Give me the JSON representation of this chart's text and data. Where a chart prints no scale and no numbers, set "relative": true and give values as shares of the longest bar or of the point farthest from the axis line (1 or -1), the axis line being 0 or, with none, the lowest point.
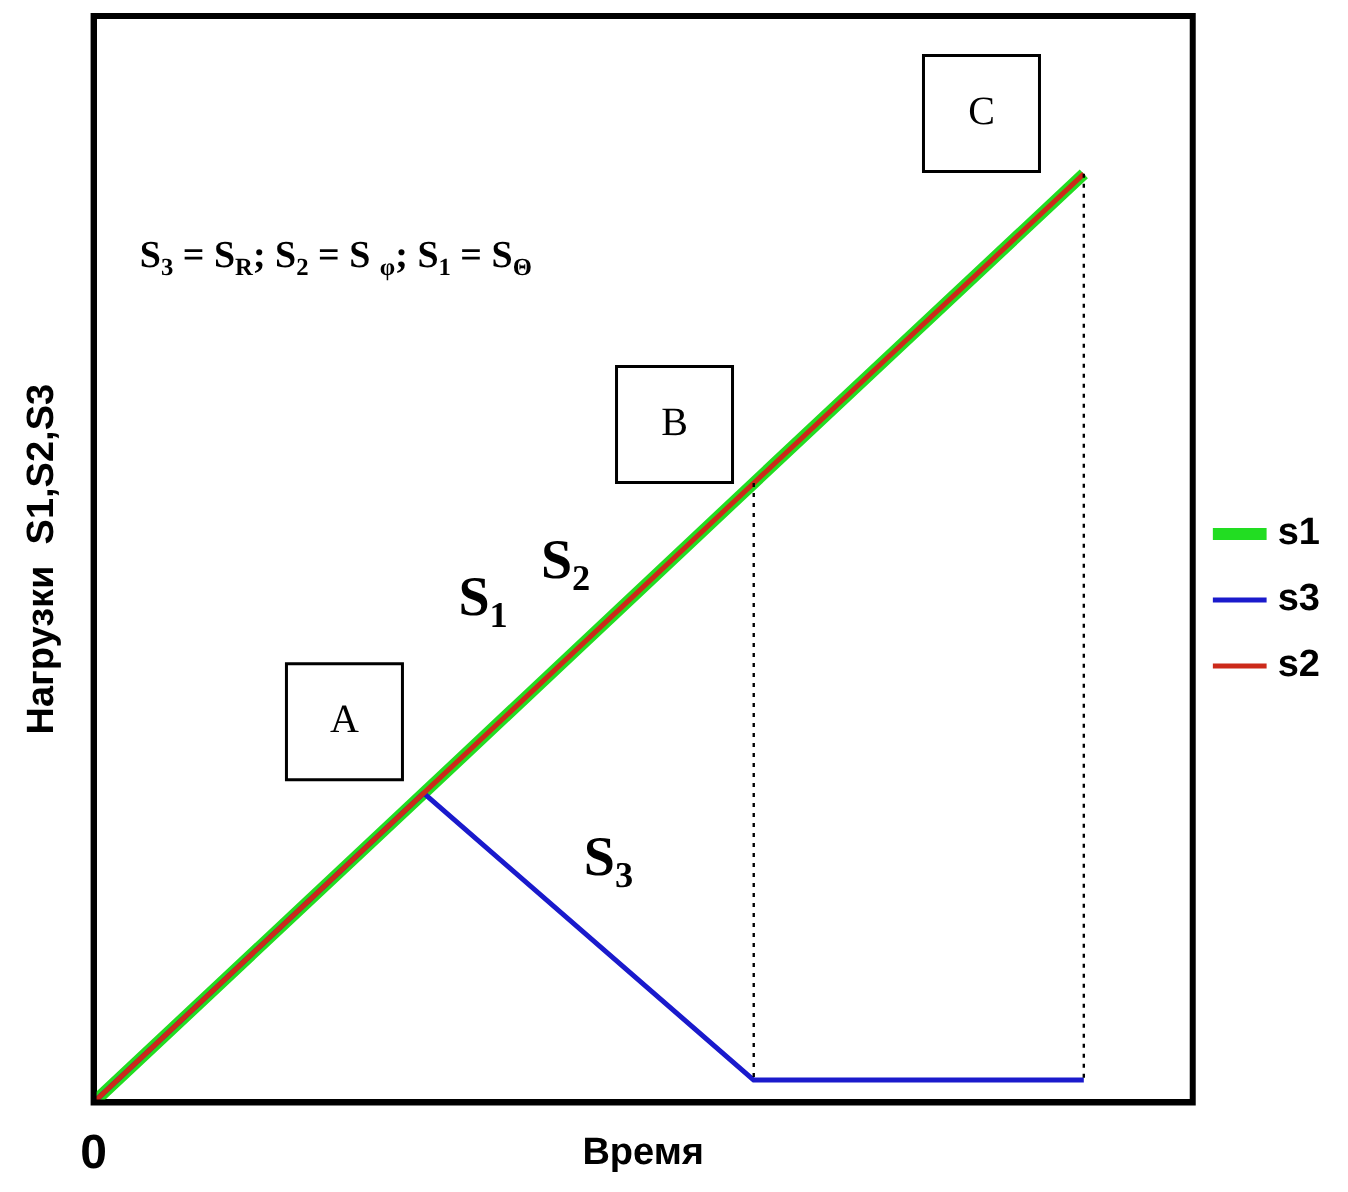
{
  "chart_data": {
    "type": "line",
    "relative": true,
    "xlabel": "Время",
    "ylabel": "Нагрузки  S1,S2,S3",
    "categories": [
      null,
      null,
      null,
      null
    ],
    "series": [
      {
        "name": "s1",
        "color": "#22dd22",
        "values": [
          0,
          0.333,
          0.667,
          1
        ]
      },
      {
        "name": "s3",
        "color": "#1a1acc",
        "values": [
          0,
          0.333,
          0.024,
          0.024
        ]
      },
      {
        "name": "s2",
        "color": "#cc2a1a",
        "values": [
          0,
          0.333,
          0.667,
          1
        ]
      }
    ],
    "annotations": [
      "0",
      "A",
      "B",
      "C",
      "S$_{3}$ = S$_{R}$; S$_{2}$ = S $_{φ}$; S$_{1}$ = S$_{Θ}$",
      "S$_{1}$",
      "S$_{2}$",
      "S$_{3}$"
    ],
    "legend": "right",
    "grid": false,
    "marker": "none",
    "line_style": "solid"
  }
}
